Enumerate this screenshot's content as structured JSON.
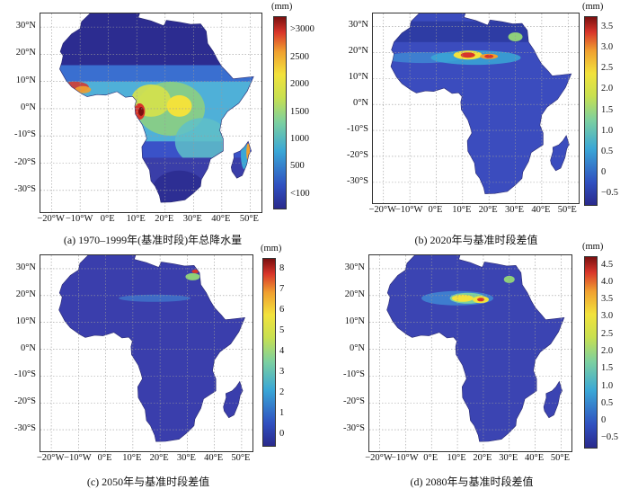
{
  "axes": {
    "lat_ticks": [
      "30°N",
      "20°N",
      "10°N",
      "0°N",
      "-10°S",
      "-20°S",
      "-30°S"
    ],
    "lon_ticks": [
      "−20°W",
      "−10°W",
      "0°E",
      "10°E",
      "20°E",
      "30°E",
      "40°E",
      "50°E"
    ],
    "lat_range": [
      35,
      -38
    ],
    "lon_range": [
      -24,
      54
    ]
  },
  "panels": [
    {
      "id": "a",
      "caption": "(a) 1970–1999年(基准时段)年总降水量",
      "unit": "(mm)",
      "colorbar_labels": [
        ">3000",
        "2500",
        "2000",
        "1500",
        "1000",
        "500",
        "<100"
      ],
      "colorbar_range": [
        100,
        3000
      ],
      "field": "baseline-precipitation"
    },
    {
      "id": "b",
      "caption": "(b) 2020年与基准时段差值",
      "unit": "(mm)",
      "colorbar_labels": [
        "3.5",
        "3.0",
        "2.5",
        "2.0",
        "1.5",
        "1.0",
        "0.5",
        "0",
        "−0.5"
      ],
      "colorbar_range": [
        -0.5,
        3.5
      ],
      "field": "difference-2020"
    },
    {
      "id": "c",
      "caption": "(c) 2050年与基准时段差值",
      "unit": "(mm)",
      "colorbar_labels": [
        "8",
        "7",
        "6",
        "5",
        "4",
        "3",
        "2",
        "1",
        "0"
      ],
      "colorbar_range": [
        0,
        8
      ],
      "field": "difference-2050"
    },
    {
      "id": "d",
      "caption": "(d) 2080年与基准时段差值",
      "unit": "(mm)",
      "colorbar_labels": [
        "4.5",
        "4.0",
        "3.5",
        "3.0",
        "2.5",
        "2.0",
        "1.5",
        "1.0",
        "0.5",
        "0",
        "−0.5"
      ],
      "colorbar_range": [
        -0.5,
        4.5
      ],
      "field": "difference-2080"
    }
  ],
  "colors": {
    "jet_bottom": "#2a2a8c",
    "jet_low": "#3656c9",
    "jet_cyan": "#3aa7d6",
    "jet_green": "#8fd07a",
    "jet_yellow": "#f2e23c",
    "jet_orange": "#f0a030",
    "jet_red": "#d8352a",
    "jet_top": "#7a1010"
  }
}
